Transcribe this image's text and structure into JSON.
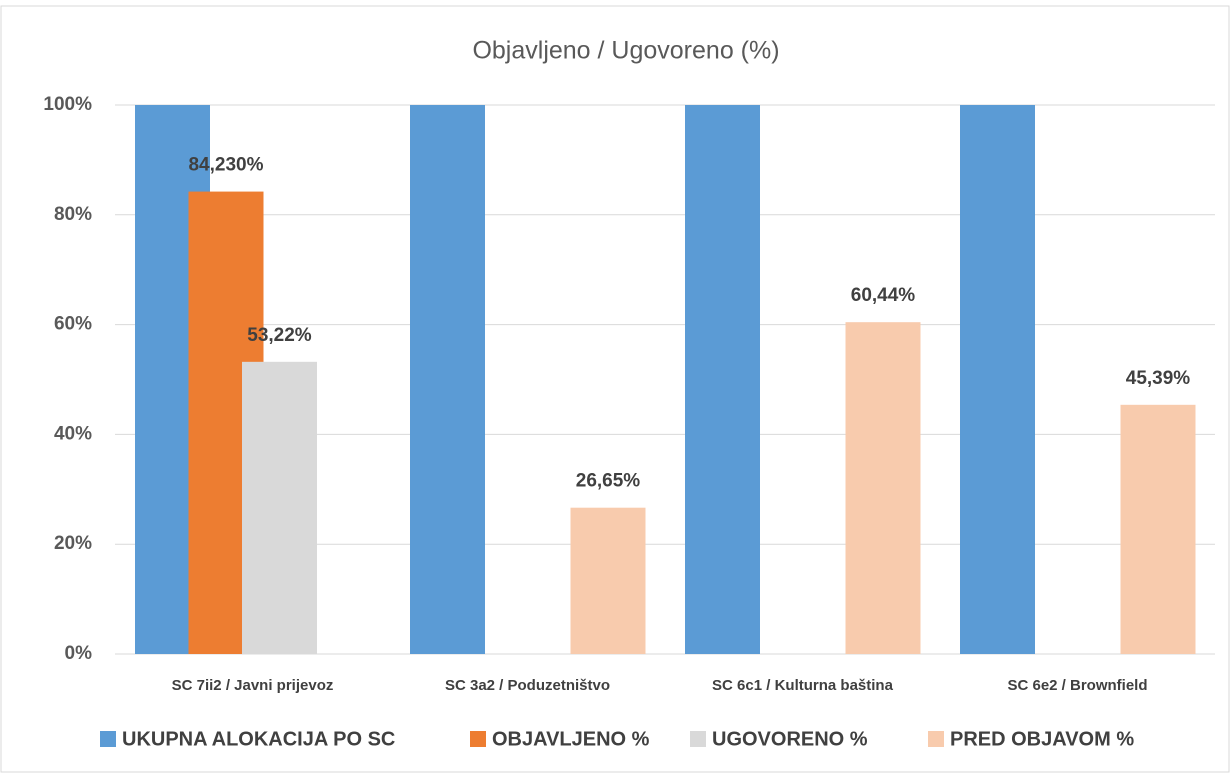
{
  "chart_data": {
    "type": "bar",
    "title": "Objavljeno / Ugovoreno (%)",
    "categories": [
      "SC 7ii2 / Javni prijevoz",
      "SC 3a2 / Poduzetništvo",
      "SC 6c1 / Kulturna baština",
      "SC 6e2 / Brownfield"
    ],
    "series": [
      {
        "name": "UKUPNA ALOKACIJA PO SC",
        "color": "#5b9bd5",
        "values": [
          100,
          100,
          100,
          100
        ],
        "value_labels": [
          null,
          null,
          null,
          null
        ]
      },
      {
        "name": "OBJAVLJENO %",
        "color": "#ed7d31",
        "values": [
          84.23,
          null,
          null,
          null
        ],
        "value_labels": [
          "84,230%",
          null,
          null,
          null
        ]
      },
      {
        "name": "UGOVORENO %",
        "color": "#d9d9d9",
        "values": [
          53.22,
          null,
          null,
          null
        ],
        "value_labels": [
          "53,22%",
          null,
          null,
          null
        ]
      },
      {
        "name": "PRED OBJAVOM %",
        "color": "#f8cbad",
        "values": [
          null,
          26.65,
          60.44,
          45.39
        ],
        "value_labels": [
          null,
          "26,65%",
          "60,44%",
          "45,39%"
        ]
      }
    ],
    "ylim": [
      0,
      100
    ],
    "yticks": [
      {
        "value": 0,
        "label": "0%"
      },
      {
        "value": 20,
        "label": "20%"
      },
      {
        "value": 40,
        "label": "40%"
      },
      {
        "value": 60,
        "label": "60%"
      },
      {
        "value": 80,
        "label": "80%"
      },
      {
        "value": 100,
        "label": "100%"
      }
    ],
    "grid": true
  }
}
